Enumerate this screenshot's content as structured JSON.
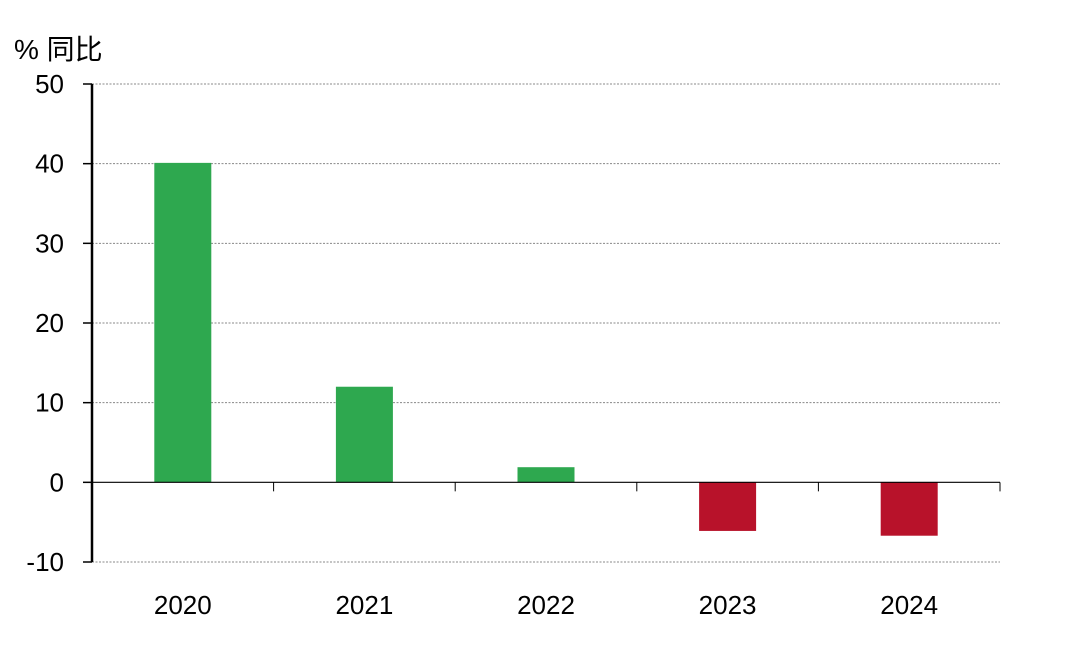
{
  "chart_data": {
    "type": "bar",
    "ylabel": "% 同比",
    "categories": [
      "2020",
      "2021",
      "2022",
      "2023",
      "2024"
    ],
    "values": [
      40.1,
      12.0,
      1.9,
      -6.1,
      -6.7
    ],
    "ylim": [
      -10,
      50
    ],
    "yticks": [
      "50",
      "40",
      "30",
      "20",
      "10",
      "0",
      "-10"
    ],
    "grid": true,
    "colors": {
      "positive": "#2ea84f",
      "negative": "#b8122a",
      "axis": "#000000",
      "grid": "#888888"
    }
  }
}
